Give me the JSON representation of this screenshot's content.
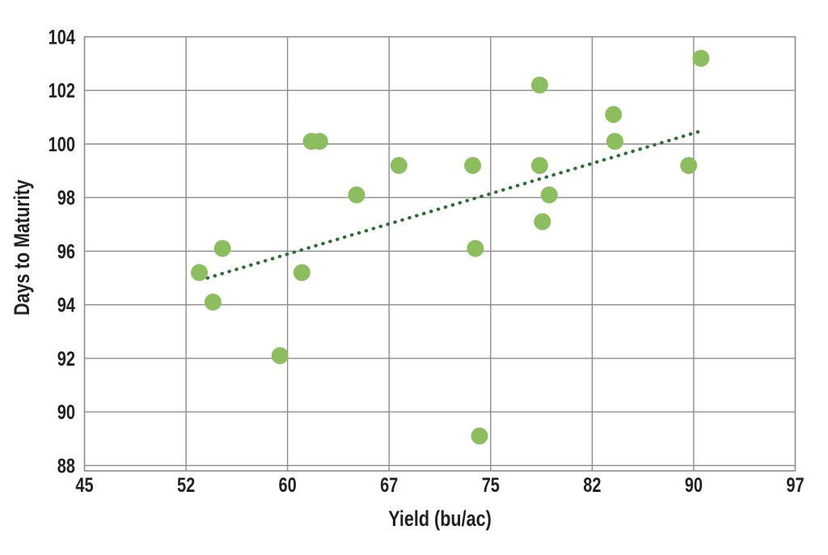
{
  "chart_data": {
    "type": "scatter",
    "title": "",
    "xlabel": "Yield (bu/ac)",
    "ylabel": "Days to Maturity",
    "x_tick_labels": [
      "45",
      "52",
      "60",
      "67",
      "75",
      "82",
      "90",
      "97"
    ],
    "y_tick_labels": [
      "88",
      "90",
      "92",
      "94",
      "96",
      "98",
      "100",
      "102",
      "104"
    ],
    "y_tick_values": [
      88,
      90,
      92,
      94,
      96,
      98,
      100,
      102,
      104
    ],
    "xlim": [
      45,
      97
    ],
    "ylim": [
      87.8,
      104
    ],
    "grid": true,
    "legend": "none",
    "points": [
      {
        "x": 53.4,
        "y": 95.2
      },
      {
        "x": 54.4,
        "y": 94.1
      },
      {
        "x": 55.1,
        "y": 96.1
      },
      {
        "x": 59.3,
        "y": 92.1
      },
      {
        "x": 60.9,
        "y": 95.2
      },
      {
        "x": 61.6,
        "y": 100.1
      },
      {
        "x": 62.2,
        "y": 100.1
      },
      {
        "x": 64.9,
        "y": 98.1
      },
      {
        "x": 68.0,
        "y": 99.2
      },
      {
        "x": 73.4,
        "y": 99.2
      },
      {
        "x": 73.6,
        "y": 96.1
      },
      {
        "x": 73.9,
        "y": 89.1
      },
      {
        "x": 78.3,
        "y": 102.2
      },
      {
        "x": 78.3,
        "y": 99.2
      },
      {
        "x": 78.5,
        "y": 97.1
      },
      {
        "x": 79.0,
        "y": 98.1
      },
      {
        "x": 83.7,
        "y": 101.1
      },
      {
        "x": 83.8,
        "y": 100.1
      },
      {
        "x": 89.2,
        "y": 99.2
      },
      {
        "x": 90.1,
        "y": 103.2
      }
    ],
    "trendline": {
      "style": "dotted",
      "x1": 54.0,
      "y1": 95.0,
      "x2": 90.2,
      "y2": 100.5
    },
    "colors": {
      "point": "#8CBE5F",
      "trend": "#2D6E32",
      "grid": "#8C8C8C",
      "text": "#231F20",
      "background": "#FFFFFF"
    }
  }
}
